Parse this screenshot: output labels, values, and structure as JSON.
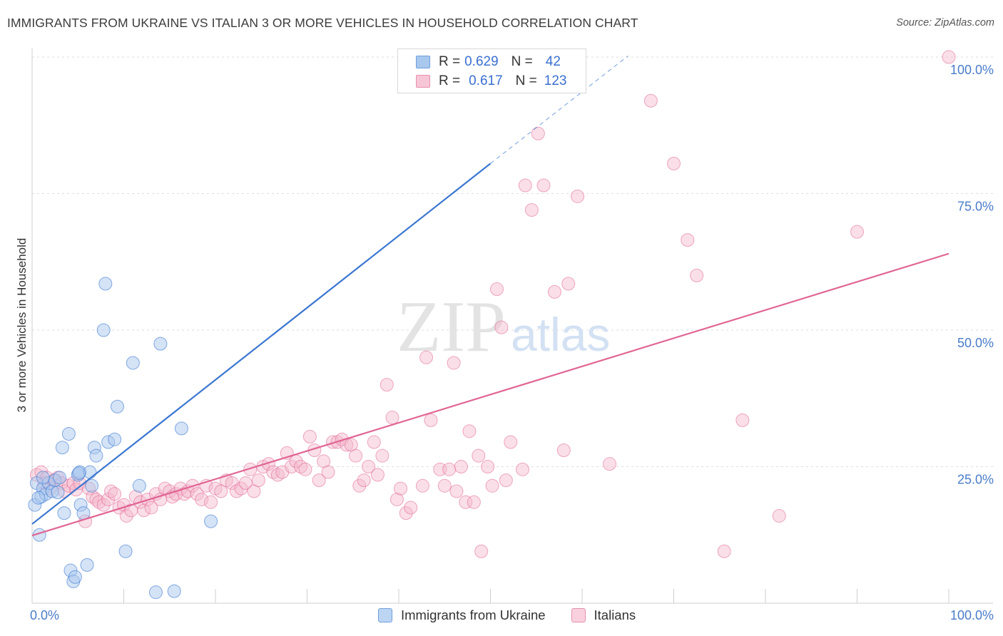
{
  "header": {
    "title": "IMMIGRANTS FROM UKRAINE VS ITALIAN 3 OR MORE VEHICLES IN HOUSEHOLD CORRELATION CHART",
    "source": "Source: ZipAtlas.com"
  },
  "legend": {
    "rows": [
      {
        "r_label": "R =",
        "r_value": "0.629",
        "n_label": "N =",
        "n_value": "42"
      },
      {
        "r_label": "R =",
        "r_value": "0.617",
        "n_label": "N =",
        "n_value": "123"
      }
    ]
  },
  "bottom_legend": {
    "series1": "Immigrants from Ukraine",
    "series2": "Italians"
  },
  "watermark": {
    "zip": "ZIP",
    "atlas": "atlas"
  },
  "colors": {
    "blue": "#3a76d0",
    "blue_fill": "#a9c8ee",
    "pink": "#e06593",
    "pink_fill": "#f4b8cc",
    "grid": "#dedede",
    "tick_label": "#4a7cc9"
  },
  "chart_data": {
    "type": "scatter",
    "title": "IMMIGRANTS FROM UKRAINE VS ITALIAN 3 OR MORE VEHICLES IN HOUSEHOLD CORRELATION CHART",
    "xlabel": "",
    "ylabel": "3 or more Vehicles in Household",
    "xlim": [
      0,
      100
    ],
    "ylim": [
      0,
      100
    ],
    "x_tick_labels": [
      "0.0%",
      "100.0%"
    ],
    "y_ticks": [
      25,
      50,
      75,
      100
    ],
    "y_tick_labels": [
      "25.0%",
      "50.0%",
      "75.0%",
      "100.0%"
    ],
    "grid": true,
    "series": [
      {
        "name": "Immigrants from Ukraine",
        "r": 0.629,
        "n": 42,
        "trend": {
          "x0": 0,
          "y0": 14.5,
          "x1": 50,
          "y1": 80.5,
          "dashed_to_x": 65,
          "dashed_to_y": 100.2
        },
        "points": [
          [
            0.3,
            18
          ],
          [
            0.5,
            22
          ],
          [
            0.8,
            12.5
          ],
          [
            1.0,
            19.5
          ],
          [
            1.2,
            21
          ],
          [
            1.5,
            20
          ],
          [
            1.8,
            22
          ],
          [
            2.2,
            20.5
          ],
          [
            2.5,
            22.5
          ],
          [
            3.0,
            23
          ],
          [
            3.3,
            28.5
          ],
          [
            3.5,
            16.5
          ],
          [
            4.0,
            31
          ],
          [
            4.2,
            6
          ],
          [
            4.5,
            4
          ],
          [
            4.7,
            4.8
          ],
          [
            5.0,
            23.5
          ],
          [
            5.2,
            24
          ],
          [
            5.3,
            18
          ],
          [
            5.6,
            16.5
          ],
          [
            6.0,
            7
          ],
          [
            6.3,
            24
          ],
          [
            6.5,
            21.5
          ],
          [
            6.8,
            28.5
          ],
          [
            7.0,
            27
          ],
          [
            8.0,
            58.5
          ],
          [
            8.3,
            29.5
          ],
          [
            9.0,
            30
          ],
          [
            9.3,
            36
          ],
          [
            10.2,
            9.5
          ],
          [
            11.0,
            44
          ],
          [
            11.7,
            21.5
          ],
          [
            13.5,
            2
          ],
          [
            14.0,
            47.5
          ],
          [
            15.5,
            2.2
          ],
          [
            16.3,
            32
          ],
          [
            19.5,
            15
          ],
          [
            7.8,
            50
          ],
          [
            1.2,
            23
          ],
          [
            2.8,
            20.3
          ],
          [
            5.1,
            23.8
          ],
          [
            0.7,
            19.3
          ]
        ]
      },
      {
        "name": "Italians",
        "r": 0.617,
        "n": 123,
        "trend": {
          "x0": 0,
          "y0": 12.4,
          "x1": 100,
          "y1": 64
        },
        "points": [
          [
            0.5,
            23.5
          ],
          [
            1.0,
            24
          ],
          [
            1.3,
            22
          ],
          [
            1.6,
            23
          ],
          [
            2.0,
            21
          ],
          [
            2.4,
            22.5
          ],
          [
            2.8,
            23
          ],
          [
            3.2,
            22
          ],
          [
            3.5,
            20.5
          ],
          [
            4.0,
            21.5
          ],
          [
            4.5,
            22
          ],
          [
            4.8,
            20.8
          ],
          [
            5.2,
            22
          ],
          [
            5.8,
            15
          ],
          [
            6.2,
            21
          ],
          [
            6.6,
            19.5
          ],
          [
            7.0,
            19
          ],
          [
            7.3,
            18.5
          ],
          [
            7.8,
            18
          ],
          [
            8.3,
            19
          ],
          [
            8.6,
            20.5
          ],
          [
            9.0,
            20
          ],
          [
            9.5,
            17.5
          ],
          [
            10.0,
            18
          ],
          [
            10.3,
            16
          ],
          [
            10.8,
            17
          ],
          [
            11.3,
            19.5
          ],
          [
            11.8,
            18.5
          ],
          [
            12.2,
            17
          ],
          [
            12.6,
            19
          ],
          [
            13.0,
            17.5
          ],
          [
            13.5,
            20
          ],
          [
            14.0,
            19
          ],
          [
            14.5,
            21
          ],
          [
            15.0,
            20.5
          ],
          [
            15.3,
            19.5
          ],
          [
            15.7,
            20
          ],
          [
            16.2,
            21
          ],
          [
            16.6,
            20
          ],
          [
            17.0,
            20.5
          ],
          [
            17.5,
            21.5
          ],
          [
            18.0,
            20
          ],
          [
            18.5,
            19
          ],
          [
            19.0,
            21.5
          ],
          [
            19.5,
            18.5
          ],
          [
            20.0,
            21
          ],
          [
            20.6,
            20.5
          ],
          [
            21.2,
            22.5
          ],
          [
            21.8,
            22
          ],
          [
            22.3,
            20.5
          ],
          [
            22.8,
            21
          ],
          [
            23.3,
            22
          ],
          [
            23.8,
            24.5
          ],
          [
            24.2,
            20.5
          ],
          [
            24.7,
            22.5
          ],
          [
            25.2,
            25
          ],
          [
            25.8,
            25.5
          ],
          [
            26.3,
            24
          ],
          [
            26.8,
            23.5
          ],
          [
            27.3,
            24
          ],
          [
            27.8,
            27.5
          ],
          [
            28.3,
            25
          ],
          [
            28.8,
            26
          ],
          [
            29.3,
            25
          ],
          [
            29.8,
            24.5
          ],
          [
            30.3,
            30.5
          ],
          [
            30.8,
            28
          ],
          [
            31.3,
            22.5
          ],
          [
            31.8,
            26
          ],
          [
            32.3,
            24
          ],
          [
            32.8,
            29.5
          ],
          [
            33.3,
            29.5
          ],
          [
            33.8,
            30
          ],
          [
            34.3,
            29
          ],
          [
            34.8,
            29
          ],
          [
            35.3,
            27
          ],
          [
            35.7,
            21.5
          ],
          [
            36.2,
            22.5
          ],
          [
            36.7,
            25
          ],
          [
            37.3,
            29.5
          ],
          [
            37.7,
            23.5
          ],
          [
            38.2,
            27
          ],
          [
            38.7,
            40
          ],
          [
            39.3,
            34
          ],
          [
            39.8,
            19
          ],
          [
            40.2,
            21
          ],
          [
            40.8,
            16.5
          ],
          [
            41.3,
            17.5
          ],
          [
            42.6,
            21.5
          ],
          [
            43.0,
            45
          ],
          [
            43.5,
            33.5
          ],
          [
            44.5,
            24.5
          ],
          [
            45.0,
            21.5
          ],
          [
            45.5,
            24.5
          ],
          [
            46.0,
            44
          ],
          [
            46.3,
            20.5
          ],
          [
            46.8,
            25
          ],
          [
            47.3,
            18.5
          ],
          [
            47.7,
            31.5
          ],
          [
            48.2,
            18.5
          ],
          [
            48.7,
            27
          ],
          [
            49.0,
            9.5
          ],
          [
            49.7,
            25
          ],
          [
            50.2,
            21.5
          ],
          [
            50.7,
            57.5
          ],
          [
            51.2,
            50.5
          ],
          [
            51.7,
            22.5
          ],
          [
            52.2,
            29.5
          ],
          [
            53.5,
            24.5
          ],
          [
            53.8,
            76.5
          ],
          [
            54.5,
            72
          ],
          [
            55.2,
            86
          ],
          [
            55.8,
            76.5
          ],
          [
            57.0,
            57
          ],
          [
            58.5,
            58.5
          ],
          [
            58.0,
            28
          ],
          [
            59.5,
            74.5
          ],
          [
            63.0,
            25.5
          ],
          [
            67.5,
            92
          ],
          [
            70.0,
            80.5
          ],
          [
            71.5,
            66.5
          ],
          [
            72.5,
            60
          ],
          [
            75.5,
            9.5
          ],
          [
            77.5,
            33.5
          ],
          [
            81.5,
            16
          ],
          [
            90.0,
            68
          ],
          [
            100.0,
            100
          ]
        ]
      }
    ]
  }
}
